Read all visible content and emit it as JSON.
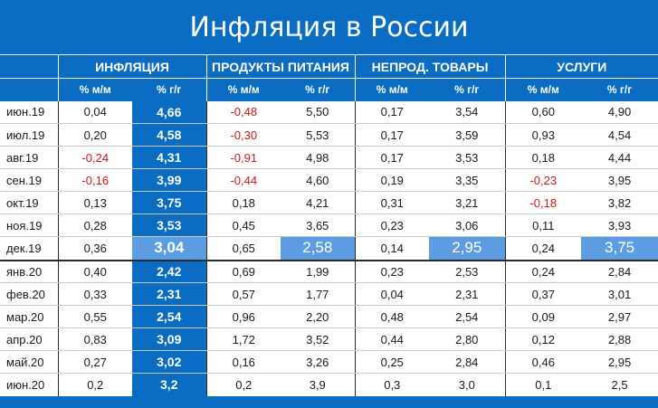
{
  "title": "Инфляция в России",
  "groups": [
    "ИНФЛЯЦИЯ",
    "ПРОДУКТЫ ПИТАНИЯ",
    "НЕПРОД. ТОВАРЫ",
    "УСЛУГИ"
  ],
  "sub": {
    "mm": "% м/м",
    "yy": "% г/г"
  },
  "colors": {
    "header_blue": "#0b6cc4",
    "highlight_blue": "#5b9de0",
    "negative_red": "#d01818"
  },
  "rows": [
    {
      "month": "июн.19",
      "v": [
        "0,04",
        "4,66",
        "-0,48",
        "5,50",
        "0,17",
        "3,54",
        "0,60",
        "4,90"
      ]
    },
    {
      "month": "июл.19",
      "v": [
        "0,20",
        "4,58",
        "-0,30",
        "5,53",
        "0,17",
        "3,59",
        "0,93",
        "4,54"
      ]
    },
    {
      "month": "авг.19",
      "v": [
        "-0,24",
        "4,31",
        "-0,91",
        "4,98",
        "0,17",
        "3,53",
        "0,18",
        "4,44"
      ]
    },
    {
      "month": "сен.19",
      "v": [
        "-0,16",
        "3,99",
        "-0,44",
        "4,60",
        "0,19",
        "3,35",
        "-0,23",
        "3,95"
      ]
    },
    {
      "month": "окт.19",
      "v": [
        "0,13",
        "3,75",
        "0,18",
        "4,21",
        "0,31",
        "3,21",
        "-0,18",
        "3,82"
      ]
    },
    {
      "month": "ноя.19",
      "v": [
        "0,28",
        "3,53",
        "0,45",
        "3,65",
        "0,23",
        "3,06",
        "0,11",
        "3,93"
      ]
    },
    {
      "month": "дек.19",
      "v": [
        "0,36",
        "3,04",
        "0,65",
        "2,58",
        "0,14",
        "2,95",
        "0,24",
        "3,75"
      ]
    },
    {
      "month": "янв.20",
      "v": [
        "0,40",
        "2,42",
        "0,69",
        "1,99",
        "0,23",
        "2,53",
        "0,24",
        "2,84"
      ]
    },
    {
      "month": "фев.20",
      "v": [
        "0,33",
        "2,31",
        "0,57",
        "1,77",
        "0,04",
        "2,31",
        "0,37",
        "3,01"
      ]
    },
    {
      "month": "мар.20",
      "v": [
        "0,55",
        "2,54",
        "0,96",
        "2,20",
        "0,48",
        "2,54",
        "0,09",
        "2,97"
      ]
    },
    {
      "month": "апр.20",
      "v": [
        "0,83",
        "3,09",
        "1,72",
        "3,52",
        "0,44",
        "2,80",
        "0,12",
        "2,88"
      ]
    },
    {
      "month": "май.20",
      "v": [
        "0,27",
        "3,02",
        "0,16",
        "3,26",
        "0,25",
        "2,84",
        "0,46",
        "2,95"
      ]
    },
    {
      "month": "июн.20",
      "v": [
        "0,2",
        "3,2",
        "0,2",
        "3,9",
        "0,3",
        "3,0",
        "0,1",
        "2,5"
      ]
    }
  ]
}
